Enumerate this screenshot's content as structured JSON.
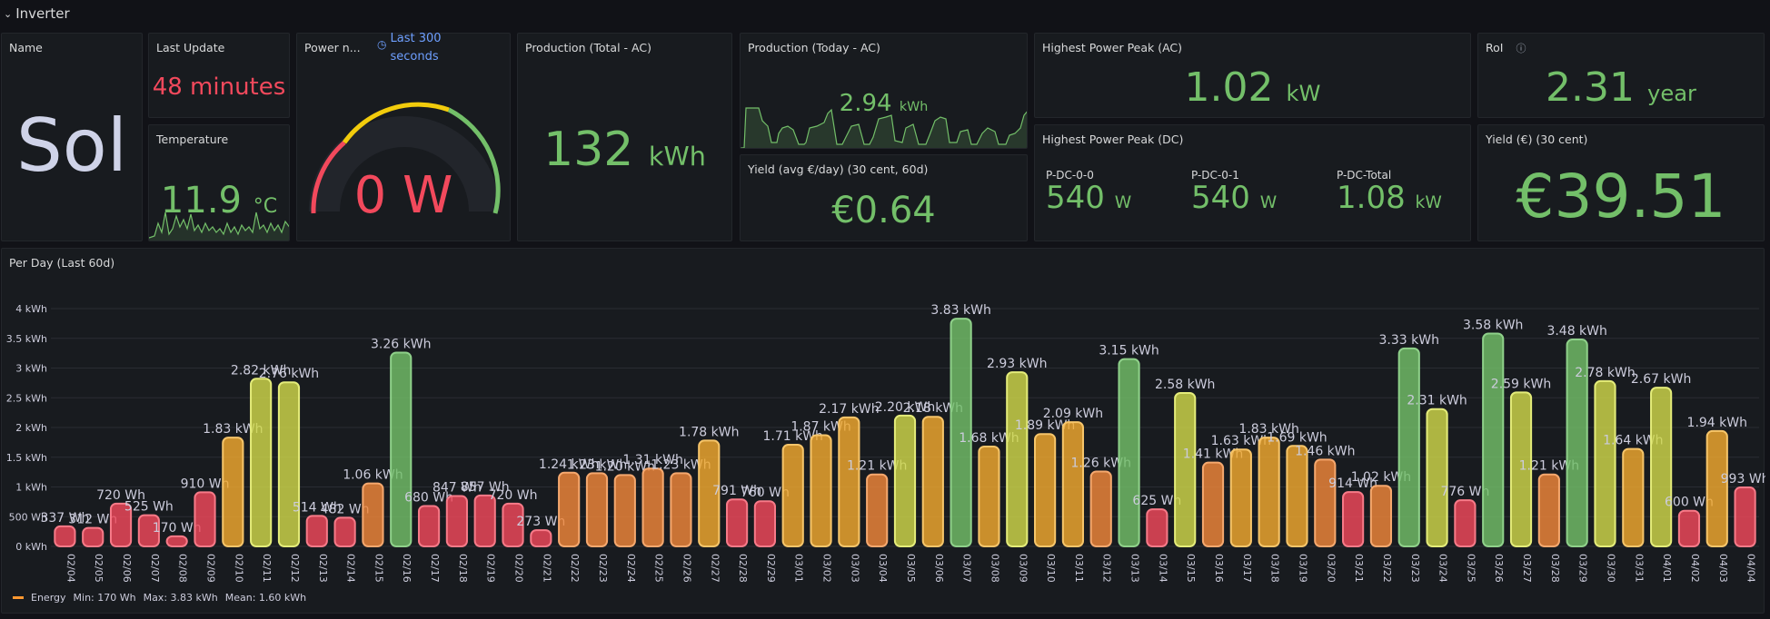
{
  "row": {
    "chevron": "chevron-down-icon",
    "title": "Inverter"
  },
  "name_panel": {
    "title": "Name",
    "value": "Sol"
  },
  "last_update": {
    "title": "Last Update",
    "value": "48 minutes"
  },
  "temperature": {
    "title": "Temperature",
    "value": "11.9",
    "unit": "°C"
  },
  "power_now": {
    "title": "Power n...",
    "time_icon": "clock-icon",
    "time_info": "Last 300 seconds",
    "time_line1": "Last 300",
    "time_line2": "seconds",
    "value": "0 W"
  },
  "production_total": {
    "title": "Production (Total - AC)",
    "value": "132",
    "unit": "kWh"
  },
  "production_today": {
    "title": "Production (Today - AC)",
    "value": "2.94",
    "unit": "kWh"
  },
  "yield_avg": {
    "title": "Yield (avg €/day) (30 cent, 60d)",
    "value": "€0.64"
  },
  "highest_peak_ac": {
    "title": "Highest Power Peak (AC)",
    "value": "1.02",
    "unit": "kW"
  },
  "highest_peak_dc": {
    "title": "Highest Power Peak (DC)",
    "items": [
      {
        "label": "P-DC-0-0",
        "value": "540",
        "unit": "W"
      },
      {
        "label": "P-DC-0-1",
        "value": "540",
        "unit": "W"
      },
      {
        "label": "P-DC-Total",
        "value": "1.08",
        "unit": "kW"
      }
    ]
  },
  "roi": {
    "title": "RoI",
    "info_icon": "info-icon",
    "value": "2.31",
    "unit": "year"
  },
  "yield_30": {
    "title": "Yield (€) (30 cent)",
    "value": "€39.51"
  },
  "per_day": {
    "title": "Per Day (Last 60d)",
    "legend": {
      "name": "Energy",
      "min": "Min: 170 Wh",
      "max": "Max: 3.83 kWh",
      "mean": "Mean: 1.60 kWh"
    }
  },
  "colors": {
    "green": "#73bf69",
    "red": "#f2495c",
    "yellow": "#cfd84a",
    "orange": "#ff9830",
    "panel": "#181b1f"
  },
  "chart_data": {
    "type": "bar",
    "title": "Per Day (Last 60d)",
    "ylabel": "",
    "xlabel": "",
    "ylim": [
      0,
      4.2
    ],
    "yticks": [
      "0 kWh",
      "500 Wh",
      "1 kWh",
      "1.5 kWh",
      "2 kWh",
      "2.5 kWh",
      "3 kWh",
      "3.5 kWh",
      "4 kWh"
    ],
    "grid": true,
    "legend_position": "bottom-left",
    "categories": [
      "02/04",
      "02/05",
      "02/06",
      "02/07",
      "02/08",
      "02/09",
      "02/10",
      "02/11",
      "02/12",
      "02/13",
      "02/14",
      "02/15",
      "02/16",
      "02/17",
      "02/18",
      "02/19",
      "02/20",
      "02/21",
      "02/22",
      "02/23",
      "02/24",
      "02/25",
      "02/26",
      "02/27",
      "02/28",
      "02/29",
      "03/01",
      "03/02",
      "03/03",
      "03/04",
      "03/05",
      "03/06",
      "03/07",
      "03/08",
      "03/09",
      "03/10",
      "03/11",
      "03/12",
      "03/13",
      "03/14",
      "03/15",
      "03/16",
      "03/17",
      "03/18",
      "03/19",
      "03/20",
      "03/21",
      "03/22",
      "03/23",
      "03/24",
      "03/25",
      "03/26",
      "03/27",
      "03/28",
      "03/29",
      "03/30",
      "03/31",
      "04/01",
      "04/02",
      "04/03",
      "04/04"
    ],
    "series": [
      {
        "name": "Energy",
        "values": [
          0.337,
          0.312,
          0.72,
          0.525,
          0.17,
          0.91,
          1.83,
          2.82,
          2.76,
          0.514,
          0.482,
          1.06,
          3.26,
          0.68,
          0.847,
          0.857,
          0.72,
          0.273,
          1.24,
          1.23,
          1.2,
          1.31,
          1.23,
          1.78,
          0.791,
          0.76,
          1.71,
          1.87,
          2.17,
          1.21,
          2.2,
          2.18,
          3.83,
          1.68,
          2.93,
          1.89,
          2.09,
          1.26,
          3.15,
          0.625,
          2.58,
          1.41,
          1.63,
          1.83,
          1.69,
          1.46,
          0.914,
          1.02,
          3.33,
          2.31,
          0.776,
          3.58,
          2.59,
          1.21,
          3.48,
          2.78,
          1.64,
          2.67,
          0.6,
          1.94,
          0.993
        ]
      }
    ],
    "data_labels": [
      "337 Wh",
      "312 Wh",
      "720 Wh",
      "525 Wh",
      "170 Wh",
      "910 Wh",
      "1.83 kWh",
      "2.82 kWh",
      "2.76 kWh",
      "514 Wh",
      "482 Wh",
      "1.06 kWh",
      "3.26 kWh",
      "680 Wh",
      "847 Wh",
      "857 Wh",
      "720 Wh",
      "273 Wh",
      "1.24 kWh",
      "1.23 kWh",
      "1.20 kWh",
      "1.31 kWh",
      "1.23 kWh",
      "1.78 kWh",
      "791 Wh",
      "760 Wh",
      "1.71 kWh",
      "1.87 kWh",
      "2.17 kWh",
      "1.21 kWh",
      "2.20 kWh",
      "2.18 kWh",
      "3.83 kWh",
      "1.68 kWh",
      "2.93 kWh",
      "1.89 kWh",
      "2.09 kWh",
      "1.26 kWh",
      "3.15 kWh",
      "625 Wh",
      "2.58 kWh",
      "1.41 kWh",
      "1.63 kWh",
      "1.83 kWh",
      "1.69 kWh",
      "1.46 kWh",
      "914 Wh",
      "1.02 kWh",
      "3.33 kWh",
      "2.31 kWh",
      "776 Wh",
      "3.58 kWh",
      "2.59 kWh",
      "1.21 kWh",
      "3.48 kWh",
      "2.78 kWh",
      "1.64 kWh",
      "2.67 kWh",
      "600 Wh",
      "1.94 kWh",
      "993 Wh"
    ]
  }
}
